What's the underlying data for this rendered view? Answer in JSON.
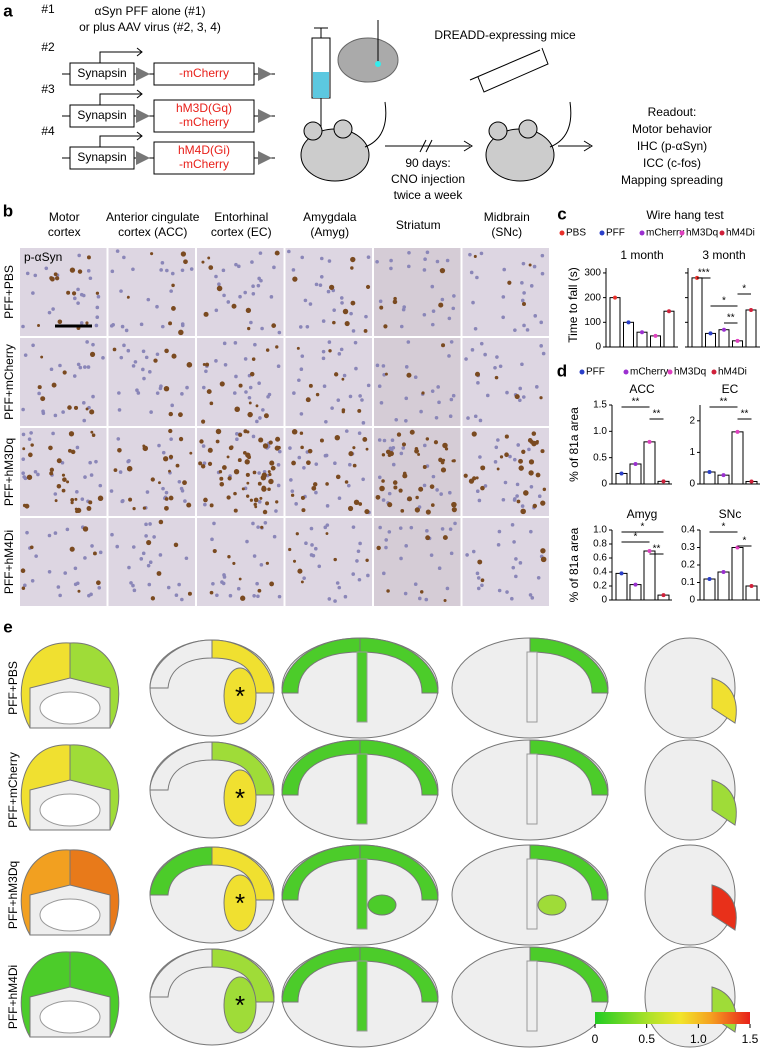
{
  "panel_a": {
    "label": "a",
    "first_id": "#1",
    "title_lines": [
      "αSyn PFF alone (#1)",
      "or plus AAV virus (#2, 3, 4)"
    ],
    "constructs": [
      {
        "id": "#2",
        "promoter": "Synapsin",
        "gene": [
          "-mCherry"
        ]
      },
      {
        "id": "#3",
        "promoter": "Synapsin",
        "gene": [
          "hM3D(Gq)",
          "-mCherry"
        ]
      },
      {
        "id": "#4",
        "promoter": "Synapsin",
        "gene": [
          "hM4D(Gi)",
          "-mCherry"
        ]
      }
    ],
    "mice_label": "DREADD-expressing mice",
    "treatment": [
      "90 days:",
      "CNO injection",
      "twice a week"
    ],
    "readout": [
      "Readout:",
      "Motor  behavior",
      "IHC (p-αSyn)",
      "ICC (c-fos)",
      "Mapping spreading"
    ]
  },
  "panel_b": {
    "label": "b",
    "stain": "p-αSyn",
    "columns": [
      [
        "Motor",
        "cortex"
      ],
      [
        "Anterior cingulate",
        "cortex (ACC)"
      ],
      [
        "Entorhinal",
        "cortex (EC)"
      ],
      [
        "Amygdala",
        "(Amyg)"
      ],
      [
        "Striatum"
      ],
      [
        "Midbrain",
        "(SNc)"
      ]
    ],
    "rows": [
      "PFF+PBS",
      "PFF+mCherry",
      "PFF+hM3Dq",
      "PFF+hM4Di"
    ]
  },
  "panel_c": {
    "label": "c",
    "title": "Wire hang test",
    "legend": [
      {
        "name": "PBS",
        "color": "#e8302a"
      },
      {
        "name": "PFF",
        "color": "#2a3fc9"
      },
      {
        "name": "mCherry",
        "color": "#9b30d0"
      },
      {
        "name": "hM3Dq",
        "color": "#e040c0"
      },
      {
        "name": "hM4Di",
        "color": "#d0203a"
      }
    ],
    "ylabel": "Time to fall (s)",
    "ylim": [
      0,
      320
    ],
    "yticks": [
      0,
      100,
      200,
      300
    ],
    "groups": [
      {
        "name": "1 month",
        "values": [
          200,
          100,
          60,
          45,
          145
        ],
        "significance": []
      },
      {
        "name": "3 month",
        "values": [
          280,
          55,
          70,
          25,
          150
        ],
        "significance": [
          "***",
          "*",
          "**",
          "*"
        ]
      }
    ]
  },
  "panel_d": {
    "label": "d",
    "legend": [
      {
        "name": "PFF",
        "color": "#2a3fc9"
      },
      {
        "name": "mCherry",
        "color": "#9b30d0"
      },
      {
        "name": "hM3Dq",
        "color": "#e040c0"
      },
      {
        "name": "hM4Di",
        "color": "#d0203a"
      }
    ],
    "ylabel": "% of 81a area",
    "plots": [
      {
        "title": "ACC",
        "ylim": [
          0,
          1.5
        ],
        "yticks": [
          0,
          0.5,
          {
            "value": 1,
            "label": "1.0"
          },
          1.5
        ],
        "values": [
          0.2,
          0.38,
          0.8,
          0.05
        ],
        "significance": [
          "**",
          "**"
        ]
      },
      {
        "title": "EC",
        "ylim": [
          0,
          2.5
        ],
        "yticks": [
          0,
          1,
          2
        ],
        "values": [
          0.38,
          0.28,
          1.65,
          0.08
        ],
        "significance": [
          "**",
          "**"
        ]
      },
      {
        "title": "Amyg",
        "ylim": [
          0,
          1.0
        ],
        "yticks": [
          0,
          0.2,
          0.4,
          0.6,
          0.8,
          {
            "value": 1,
            "label": "1.0"
          }
        ],
        "values": [
          0.38,
          0.22,
          0.7,
          0.07
        ],
        "significance": [
          "*",
          "*",
          "**"
        ]
      },
      {
        "title": "SNc",
        "ylim": [
          0,
          0.4
        ],
        "yticks": [
          0,
          0.1,
          0.2,
          0.3,
          0.4
        ],
        "values": [
          0.12,
          0.16,
          0.3,
          0.08
        ],
        "significance": [
          "*",
          "*"
        ]
      }
    ]
  },
  "panel_e": {
    "label": "e",
    "rows": [
      "PFF+PBS",
      "PFF+mCherry",
      "PFF+hM3Dq",
      "PFF+hM4Di"
    ],
    "marker": "*",
    "colorbar": {
      "lim": [
        0,
        1.5
      ],
      "ticks": [
        0,
        0.5,
        {
          "value": 1,
          "label": "1.0"
        },
        1.5
      ]
    }
  }
}
